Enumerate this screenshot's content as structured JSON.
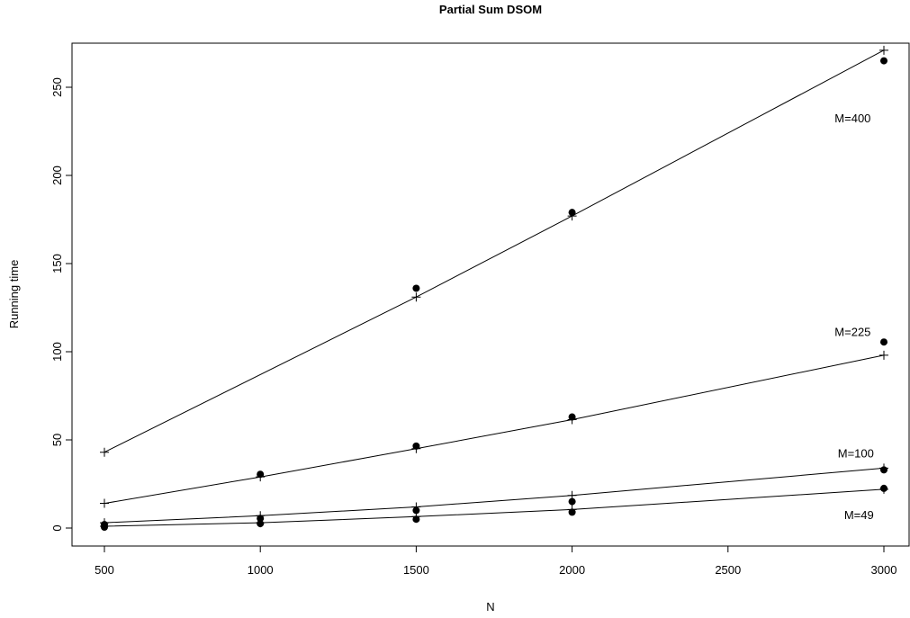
{
  "chart_data": {
    "type": "scatter",
    "title": "Partial Sum DSOM",
    "xlabel": "N",
    "ylabel": "Running time",
    "xlim": [
      500,
      3000
    ],
    "ylim": [
      0,
      270
    ],
    "xticks": [
      500,
      1000,
      1500,
      2000,
      2500,
      3000
    ],
    "yticks": [
      0,
      50,
      100,
      150,
      200,
      250
    ],
    "grid": false,
    "legend": "none",
    "series": [
      {
        "name": "M=400",
        "observed": [
          {
            "x": 1500,
            "y": 136
          },
          {
            "x": 2000,
            "y": 179
          },
          {
            "x": 3000,
            "y": 265
          }
        ],
        "fitted": [
          {
            "x": 500,
            "y": 43
          },
          {
            "x": 1500,
            "y": 131
          },
          {
            "x": 2000,
            "y": 177
          },
          {
            "x": 3000,
            "y": 271
          }
        ],
        "label_at": {
          "x": 2900,
          "y": 230
        }
      },
      {
        "name": "M=225",
        "observed": [
          {
            "x": 1000,
            "y": 30.5
          },
          {
            "x": 1500,
            "y": 46.5
          },
          {
            "x": 2000,
            "y": 63
          },
          {
            "x": 3000,
            "y": 105.5
          }
        ],
        "fitted": [
          {
            "x": 500,
            "y": 14
          },
          {
            "x": 1000,
            "y": 29
          },
          {
            "x": 1500,
            "y": 45
          },
          {
            "x": 2000,
            "y": 61.5
          },
          {
            "x": 3000,
            "y": 98
          }
        ],
        "label_at": {
          "x": 2900,
          "y": 109
        }
      },
      {
        "name": "M=100",
        "observed": [
          {
            "x": 500,
            "y": 2
          },
          {
            "x": 1000,
            "y": 5.5
          },
          {
            "x": 1500,
            "y": 10
          },
          {
            "x": 2000,
            "y": 15
          },
          {
            "x": 3000,
            "y": 33
          }
        ],
        "fitted": [
          {
            "x": 500,
            "y": 3
          },
          {
            "x": 1000,
            "y": 7
          },
          {
            "x": 1500,
            "y": 12
          },
          {
            "x": 2000,
            "y": 18.5
          },
          {
            "x": 3000,
            "y": 34
          }
        ],
        "label_at": {
          "x": 2910,
          "y": 40
        }
      },
      {
        "name": "M=49",
        "observed": [
          {
            "x": 500,
            "y": 0.5
          },
          {
            "x": 1000,
            "y": 2.5
          },
          {
            "x": 1500,
            "y": 5
          },
          {
            "x": 2000,
            "y": 9
          },
          {
            "x": 3000,
            "y": 22.5
          }
        ],
        "fitted": [
          {
            "x": 500,
            "y": 1
          },
          {
            "x": 1000,
            "y": 3
          },
          {
            "x": 1500,
            "y": 6.5
          },
          {
            "x": 2000,
            "y": 10.5
          },
          {
            "x": 3000,
            "y": 22
          }
        ],
        "label_at": {
          "x": 2920,
          "y": 5
        }
      }
    ]
  }
}
